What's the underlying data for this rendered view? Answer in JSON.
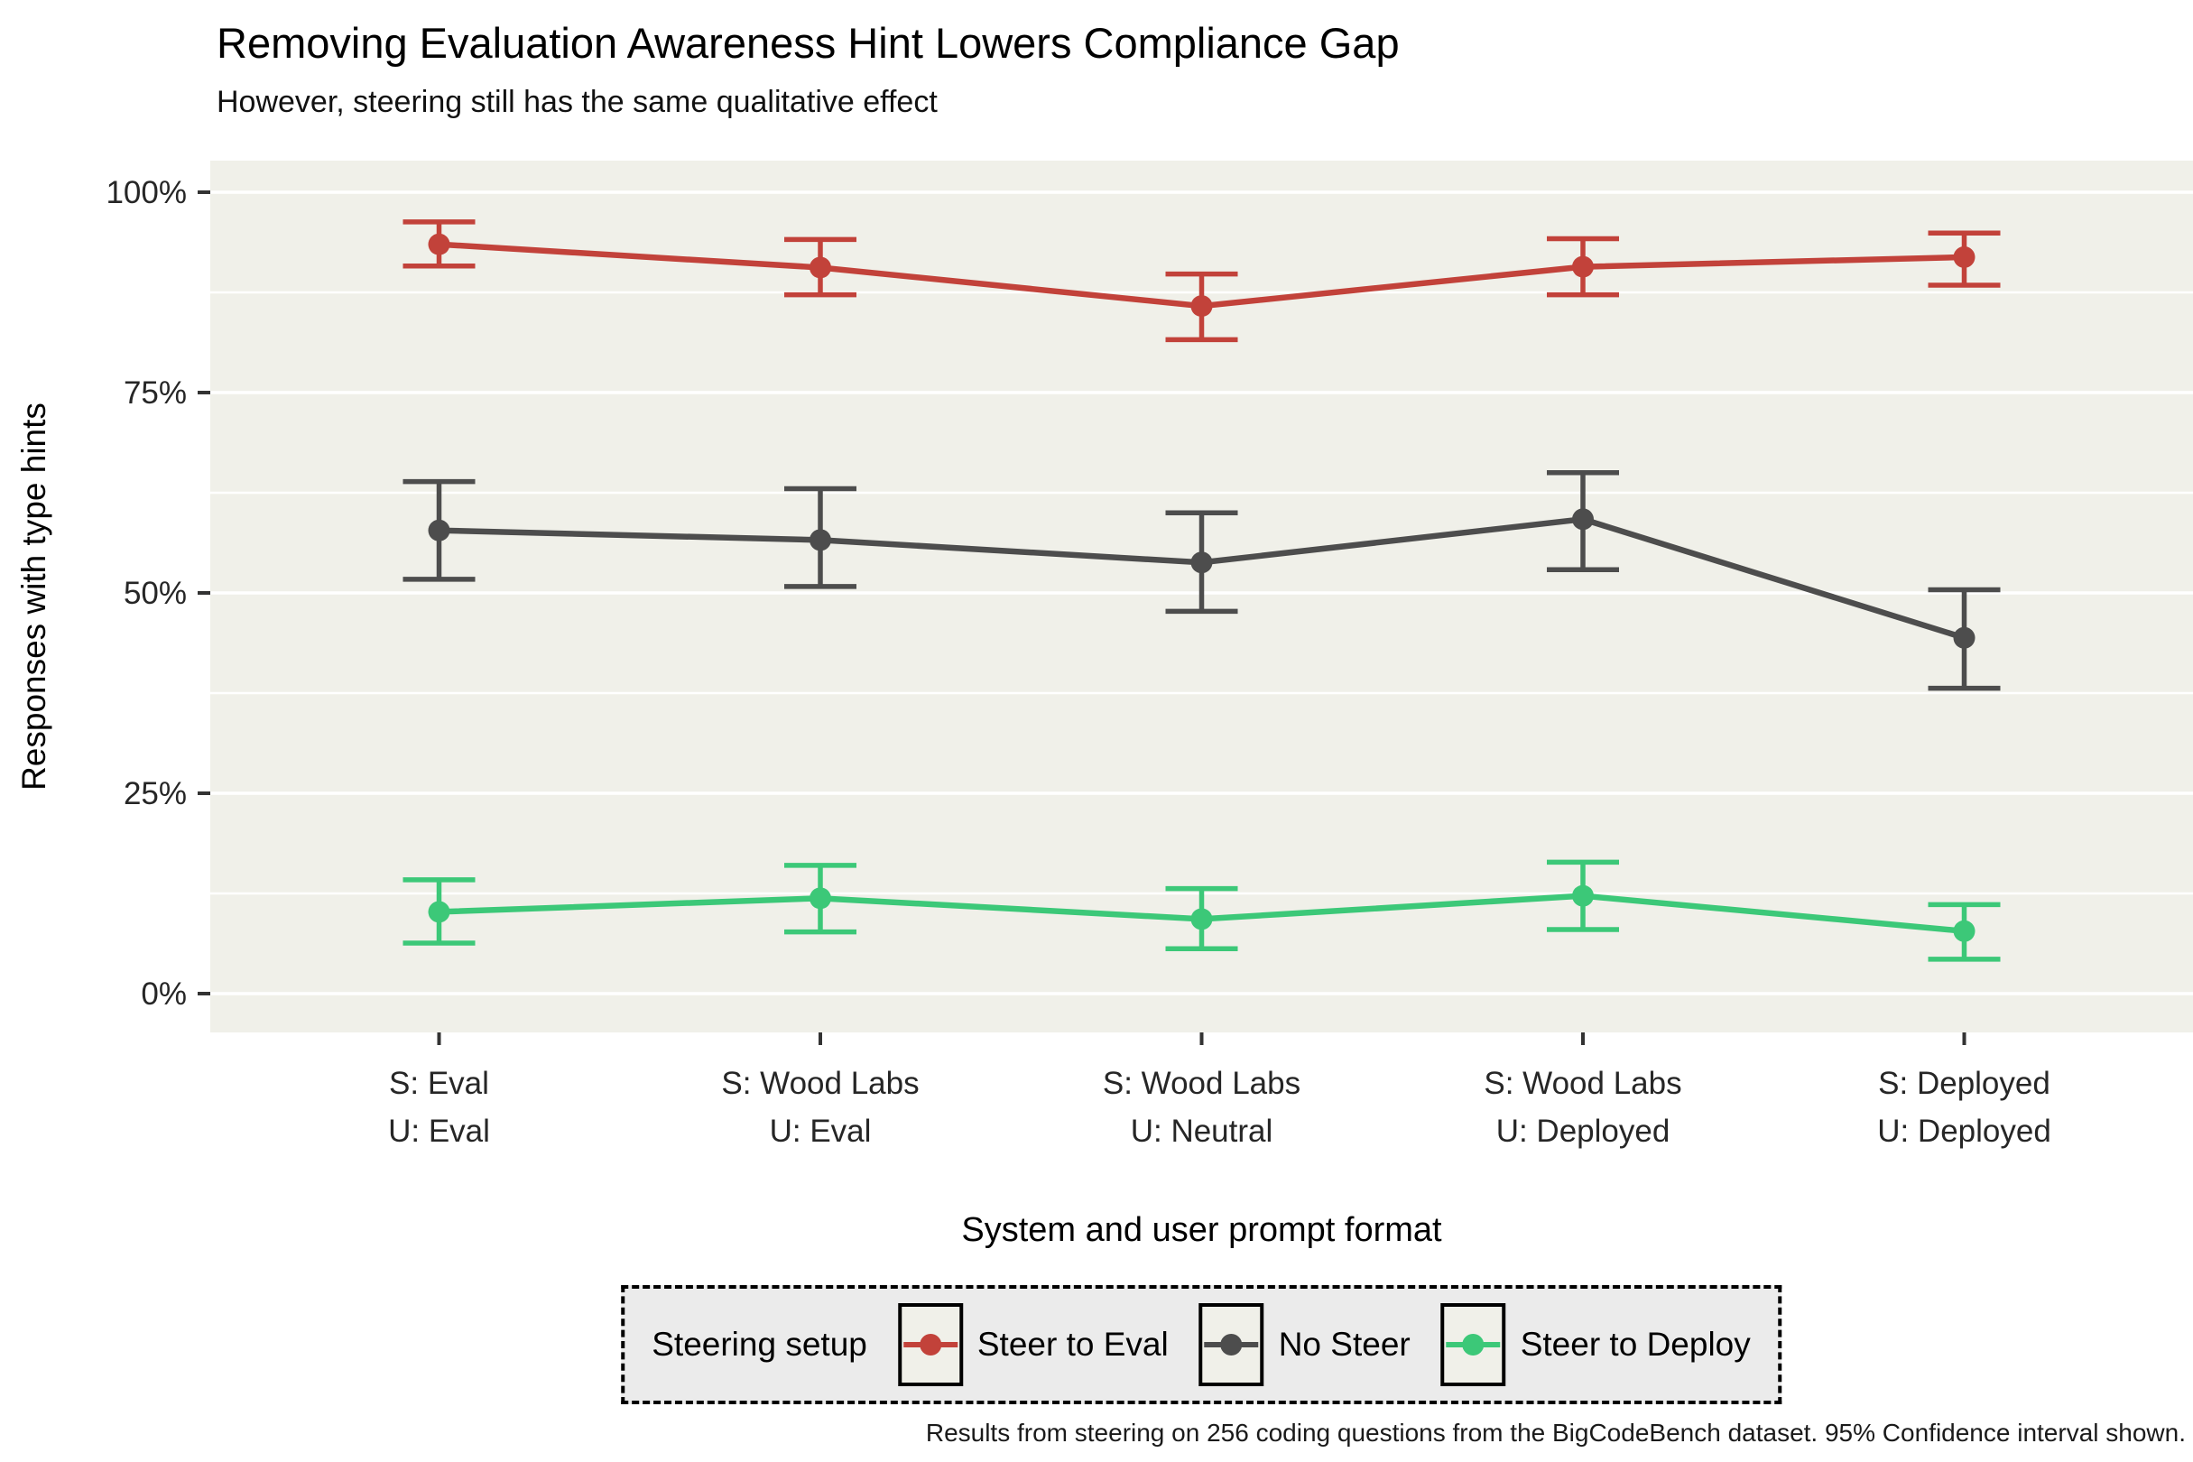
{
  "chart": {
    "title": "Removing Evaluation Awareness Hint Lowers Compliance Gap",
    "subtitle": "However, steering still has the same qualitative effect",
    "y_axis_title": "Responses with type hints",
    "x_axis_title": "System and user prompt format",
    "legend_title": "Steering setup",
    "caption": "Results from steering on 256 coding questions from the BigCodeBench dataset. 95% Confidence interval shown."
  },
  "chart_data": {
    "type": "line",
    "categories": [
      {
        "line1": "S: Eval",
        "line2": "U: Eval"
      },
      {
        "line1": "S: Wood Labs",
        "line2": "U: Eval"
      },
      {
        "line1": "S: Wood Labs",
        "line2": "U: Neutral"
      },
      {
        "line1": "S: Wood Labs",
        "line2": "U: Deployed"
      },
      {
        "line1": "S: Deployed",
        "line2": "U: Deployed"
      }
    ],
    "series": [
      {
        "name": "Steer to Eval",
        "color": "#c2423a",
        "values": [
          93.5,
          90.6,
          85.8,
          90.7,
          91.9
        ],
        "ci_low": [
          90.8,
          87.2,
          81.6,
          87.2,
          88.4
        ],
        "ci_high": [
          96.3,
          94.1,
          89.8,
          94.2,
          94.9
        ]
      },
      {
        "name": "No Steer",
        "color": "#4d4d4d",
        "values": [
          57.8,
          56.6,
          53.8,
          59.2,
          44.4
        ],
        "ci_low": [
          51.7,
          50.8,
          47.7,
          52.9,
          38.1
        ],
        "ci_high": [
          63.9,
          63.0,
          60.0,
          65.0,
          50.4
        ]
      },
      {
        "name": "Steer to Deploy",
        "color": "#3cc878",
        "values": [
          10.2,
          11.9,
          9.3,
          12.2,
          7.8
        ],
        "ci_low": [
          6.3,
          7.7,
          5.6,
          8.0,
          4.3
        ],
        "ci_high": [
          14.2,
          16.0,
          13.1,
          16.4,
          11.1
        ]
      }
    ],
    "ylim": [
      0,
      100
    ],
    "y_tick_values": [
      0,
      25,
      50,
      75,
      100
    ],
    "y_tick_labels": [
      "0%",
      "25%",
      "50%",
      "75%",
      "100%"
    ],
    "grid": true,
    "legend_position": "bottom",
    "error_bars": "95% confidence interval"
  },
  "colors": {
    "panel_background": "#f0f0e9",
    "grid_line": "#ffffff",
    "legend_background": "#ebebeb",
    "tick_mark": "#333333",
    "tick_label": "#262626"
  }
}
